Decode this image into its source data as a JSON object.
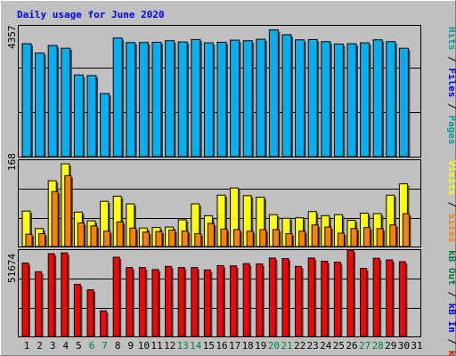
{
  "title": "Daily usage for June 2020",
  "colors": {
    "background": "#c0c0c0",
    "title": "#0000ff",
    "pages": "#00a0a0",
    "files": "#0000ff",
    "hits": "#00a0a0",
    "visits": "#ffff00",
    "sites": "#ff8000",
    "kbin": "#0000ff",
    "kbout": "#008040",
    "kbf": "#ff0000",
    "weekend": "#008040"
  },
  "chart_data": [
    {
      "type": "bar",
      "panel": "top",
      "max_label": "4357",
      "ylim": [
        0,
        4357
      ],
      "right_labels": [
        {
          "text": "Pages",
          "key": "pages"
        },
        {
          "text": "Files",
          "key": "files"
        },
        {
          "text": "Hits",
          "key": "hits"
        }
      ],
      "separator": " / ",
      "series": [
        {
          "name": "Hits",
          "values": [
            3760,
            3450,
            3700,
            3610,
            2720,
            2700,
            2100,
            3950,
            3800,
            3800,
            3810,
            3860,
            3820,
            3900,
            3790,
            3810,
            3880,
            3860,
            3910,
            4220,
            4060,
            3890,
            3900,
            3830,
            3750,
            3760,
            3790,
            3890,
            3830,
            3610
          ]
        }
      ]
    },
    {
      "type": "bar",
      "panel": "middle",
      "max_label": "168",
      "ylim": [
        0,
        168
      ],
      "right_labels": [
        {
          "text": "Sites",
          "key": "sites"
        },
        {
          "text": "Visits",
          "key": "visits"
        }
      ],
      "separator": " / ",
      "series": [
        {
          "name": "Visits",
          "values": [
            69,
            35,
            128,
            161,
            67,
            50,
            88,
            98,
            83,
            36,
            37,
            38,
            52,
            83,
            60,
            100,
            114,
            99,
            96,
            62,
            55,
            56,
            68,
            60,
            62,
            51,
            65,
            64,
            100,
            122
          ]
        },
        {
          "name": "Sites",
          "values": [
            24,
            25,
            107,
            138,
            46,
            40,
            30,
            48,
            36,
            28,
            29,
            32,
            30,
            25,
            45,
            34,
            33,
            30,
            33,
            33,
            25,
            30,
            42,
            38,
            26,
            35,
            37,
            35,
            42,
            64
          ]
        }
      ]
    },
    {
      "type": "bar",
      "panel": "bottom",
      "max_label": "51674",
      "ylim": [
        0,
        51674
      ],
      "right_labels": [
        {
          "text": "kB F",
          "key": "kbf"
        },
        {
          "text": "kB In",
          "key": "kbin"
        },
        {
          "text": "kB Out",
          "key": "kbout"
        }
      ],
      "separator": " / ",
      "series": [
        {
          "name": "kB F",
          "values": [
            43900,
            38700,
            49500,
            50000,
            31100,
            27900,
            15300,
            47400,
            41200,
            41200,
            40000,
            41900,
            41200,
            41200,
            39800,
            42400,
            42200,
            43600,
            43400,
            46900,
            46600,
            41900,
            46900,
            45000,
            44400,
            51600,
            40700,
            46800,
            45800,
            44700
          ]
        }
      ]
    }
  ],
  "x_ticks": [
    "1",
    "2",
    "3",
    "4",
    "5",
    "6",
    "7",
    "8",
    "9",
    "10",
    "11",
    "12",
    "13",
    "14",
    "15",
    "16",
    "17",
    "18",
    "19",
    "20",
    "21",
    "22",
    "23",
    "24",
    "25",
    "26",
    "27",
    "28",
    "29",
    "30",
    "31"
  ],
  "weekend_ticks": [
    "6",
    "7",
    "13",
    "14",
    "20",
    "21",
    "27",
    "28"
  ]
}
